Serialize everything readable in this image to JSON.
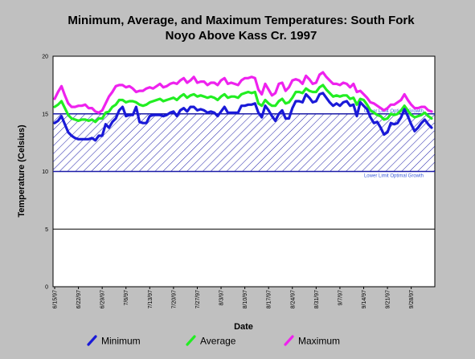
{
  "chart_data": {
    "type": "line",
    "title": "Minimum, Average, and Maximum Temperatures:  South Fork",
    "subtitle": "Noyo Above Kass Cr. 1997",
    "xlabel": "Date",
    "ylabel": "Temperature (Celsius)",
    "ylim": [
      0,
      20
    ],
    "y_ticks": [
      0,
      5,
      10,
      15,
      20
    ],
    "grid": "horizontal",
    "legend_position": "bottom",
    "x_start": "6/15/97",
    "x_end": "10/4/97",
    "x_tick_labels": [
      "6/15/97",
      "6/22/97",
      "6/29/97",
      "7/6/97",
      "7/13/97",
      "7/20/97",
      "7/27/97",
      "8/3/97",
      "8/10/97",
      "8/17/97",
      "8/24/97",
      "8/31/97",
      "9/7/97",
      "9/14/97",
      "9/21/97",
      "9/28/97"
    ],
    "band": {
      "from": 10,
      "to": 15,
      "upper_label": "Upper Limit Optimal Growth",
      "lower_label": "Lower Limit Optimal Growth",
      "color": "#1c1ca8"
    },
    "series": [
      {
        "name": "Minimum",
        "color": "#1a1ad8",
        "values": [
          14.2,
          14.4,
          14.8,
          14.1,
          13.4,
          13.1,
          12.9,
          12.8,
          12.8,
          12.8,
          12.8,
          12.9,
          12.7,
          13.1,
          13.1,
          14.1,
          13.8,
          14.3,
          14.6,
          15.3,
          15.6,
          14.8,
          14.9,
          14.9,
          15.6,
          14.3,
          14.2,
          14.2,
          14.8,
          14.9,
          14.9,
          14.9,
          14.8,
          14.9,
          15.1,
          15.2,
          14.8,
          15.3,
          15.5,
          15.2,
          15.6,
          15.6,
          15.3,
          15.4,
          15.3,
          15.1,
          15.2,
          15.1,
          14.8,
          15.2,
          15.6,
          15.1,
          15.1,
          15.1,
          15.1,
          15.7,
          15.7,
          15.8,
          15.8,
          15.9,
          15.1,
          14.7,
          15.7,
          15.3,
          14.8,
          14.4,
          15.0,
          15.3,
          14.6,
          14.6,
          15.5,
          16.1,
          16.1,
          16.0,
          16.7,
          16.4,
          16.0,
          16.1,
          16.7,
          16.8,
          16.4,
          16.0,
          15.7,
          15.9,
          15.7,
          16.0,
          16.1,
          15.7,
          15.8,
          14.8,
          16.0,
          15.7,
          15.4,
          14.7,
          14.2,
          14.3,
          13.8,
          13.2,
          13.4,
          14.2,
          14.1,
          14.2,
          14.7,
          15.4,
          14.8,
          14.1,
          13.5,
          13.8,
          14.2,
          14.5,
          14.1,
          13.8
        ]
      },
      {
        "name": "Average",
        "color": "#22ee22",
        "values": [
          15.6,
          15.8,
          16.1,
          15.5,
          14.9,
          14.6,
          14.5,
          14.4,
          14.5,
          14.5,
          14.4,
          14.5,
          14.3,
          14.6,
          14.6,
          15.1,
          15.2,
          15.6,
          15.8,
          16.2,
          16.2,
          16.0,
          16.1,
          16.1,
          16.0,
          15.8,
          15.7,
          15.8,
          16.0,
          16.1,
          16.2,
          16.3,
          16.1,
          16.2,
          16.3,
          16.4,
          16.2,
          16.5,
          16.7,
          16.4,
          16.6,
          16.7,
          16.5,
          16.6,
          16.5,
          16.4,
          16.5,
          16.4,
          16.2,
          16.5,
          16.7,
          16.4,
          16.5,
          16.5,
          16.4,
          16.7,
          16.8,
          16.9,
          16.8,
          16.9,
          15.9,
          15.7,
          16.2,
          15.9,
          15.7,
          15.7,
          16.1,
          16.3,
          15.9,
          16.0,
          16.4,
          16.9,
          16.9,
          16.8,
          17.2,
          17.0,
          16.9,
          16.9,
          17.3,
          17.5,
          17.1,
          16.8,
          16.5,
          16.6,
          16.5,
          16.6,
          16.6,
          16.3,
          16.4,
          15.8,
          16.3,
          16.2,
          15.8,
          15.3,
          15.1,
          14.9,
          14.8,
          14.5,
          14.6,
          15.0,
          14.9,
          15.0,
          15.3,
          15.7,
          15.3,
          14.9,
          14.7,
          14.8,
          14.9,
          15.1,
          14.8,
          14.6
        ]
      },
      {
        "name": "Maximum",
        "color": "#ee22ee",
        "values": [
          16.3,
          16.9,
          17.4,
          16.6,
          15.9,
          15.6,
          15.6,
          15.7,
          15.7,
          15.8,
          15.5,
          15.5,
          15.2,
          15.1,
          15.3,
          15.9,
          16.5,
          16.9,
          17.4,
          17.5,
          17.5,
          17.3,
          17.4,
          17.2,
          16.9,
          17.0,
          17.0,
          17.2,
          17.3,
          17.2,
          17.4,
          17.6,
          17.3,
          17.4,
          17.6,
          17.7,
          17.6,
          17.9,
          18.1,
          17.7,
          17.9,
          18.2,
          17.7,
          17.8,
          17.8,
          17.5,
          17.7,
          17.7,
          17.5,
          17.9,
          18.1,
          17.6,
          17.7,
          17.6,
          17.5,
          17.9,
          18.1,
          18.1,
          18.2,
          18.1,
          17.1,
          16.7,
          17.6,
          17.1,
          16.6,
          16.8,
          17.6,
          17.7,
          17.0,
          17.3,
          17.9,
          18.0,
          17.9,
          17.6,
          18.3,
          18.0,
          17.6,
          17.7,
          18.4,
          18.6,
          18.2,
          17.9,
          17.6,
          17.6,
          17.5,
          17.7,
          17.6,
          17.3,
          17.6,
          16.9,
          17.0,
          16.7,
          16.4,
          16.0,
          15.9,
          15.7,
          15.5,
          15.3,
          15.5,
          15.8,
          15.8,
          16.0,
          16.2,
          16.7,
          16.2,
          15.8,
          15.5,
          15.5,
          15.6,
          15.6,
          15.3,
          15.2
        ]
      }
    ]
  }
}
